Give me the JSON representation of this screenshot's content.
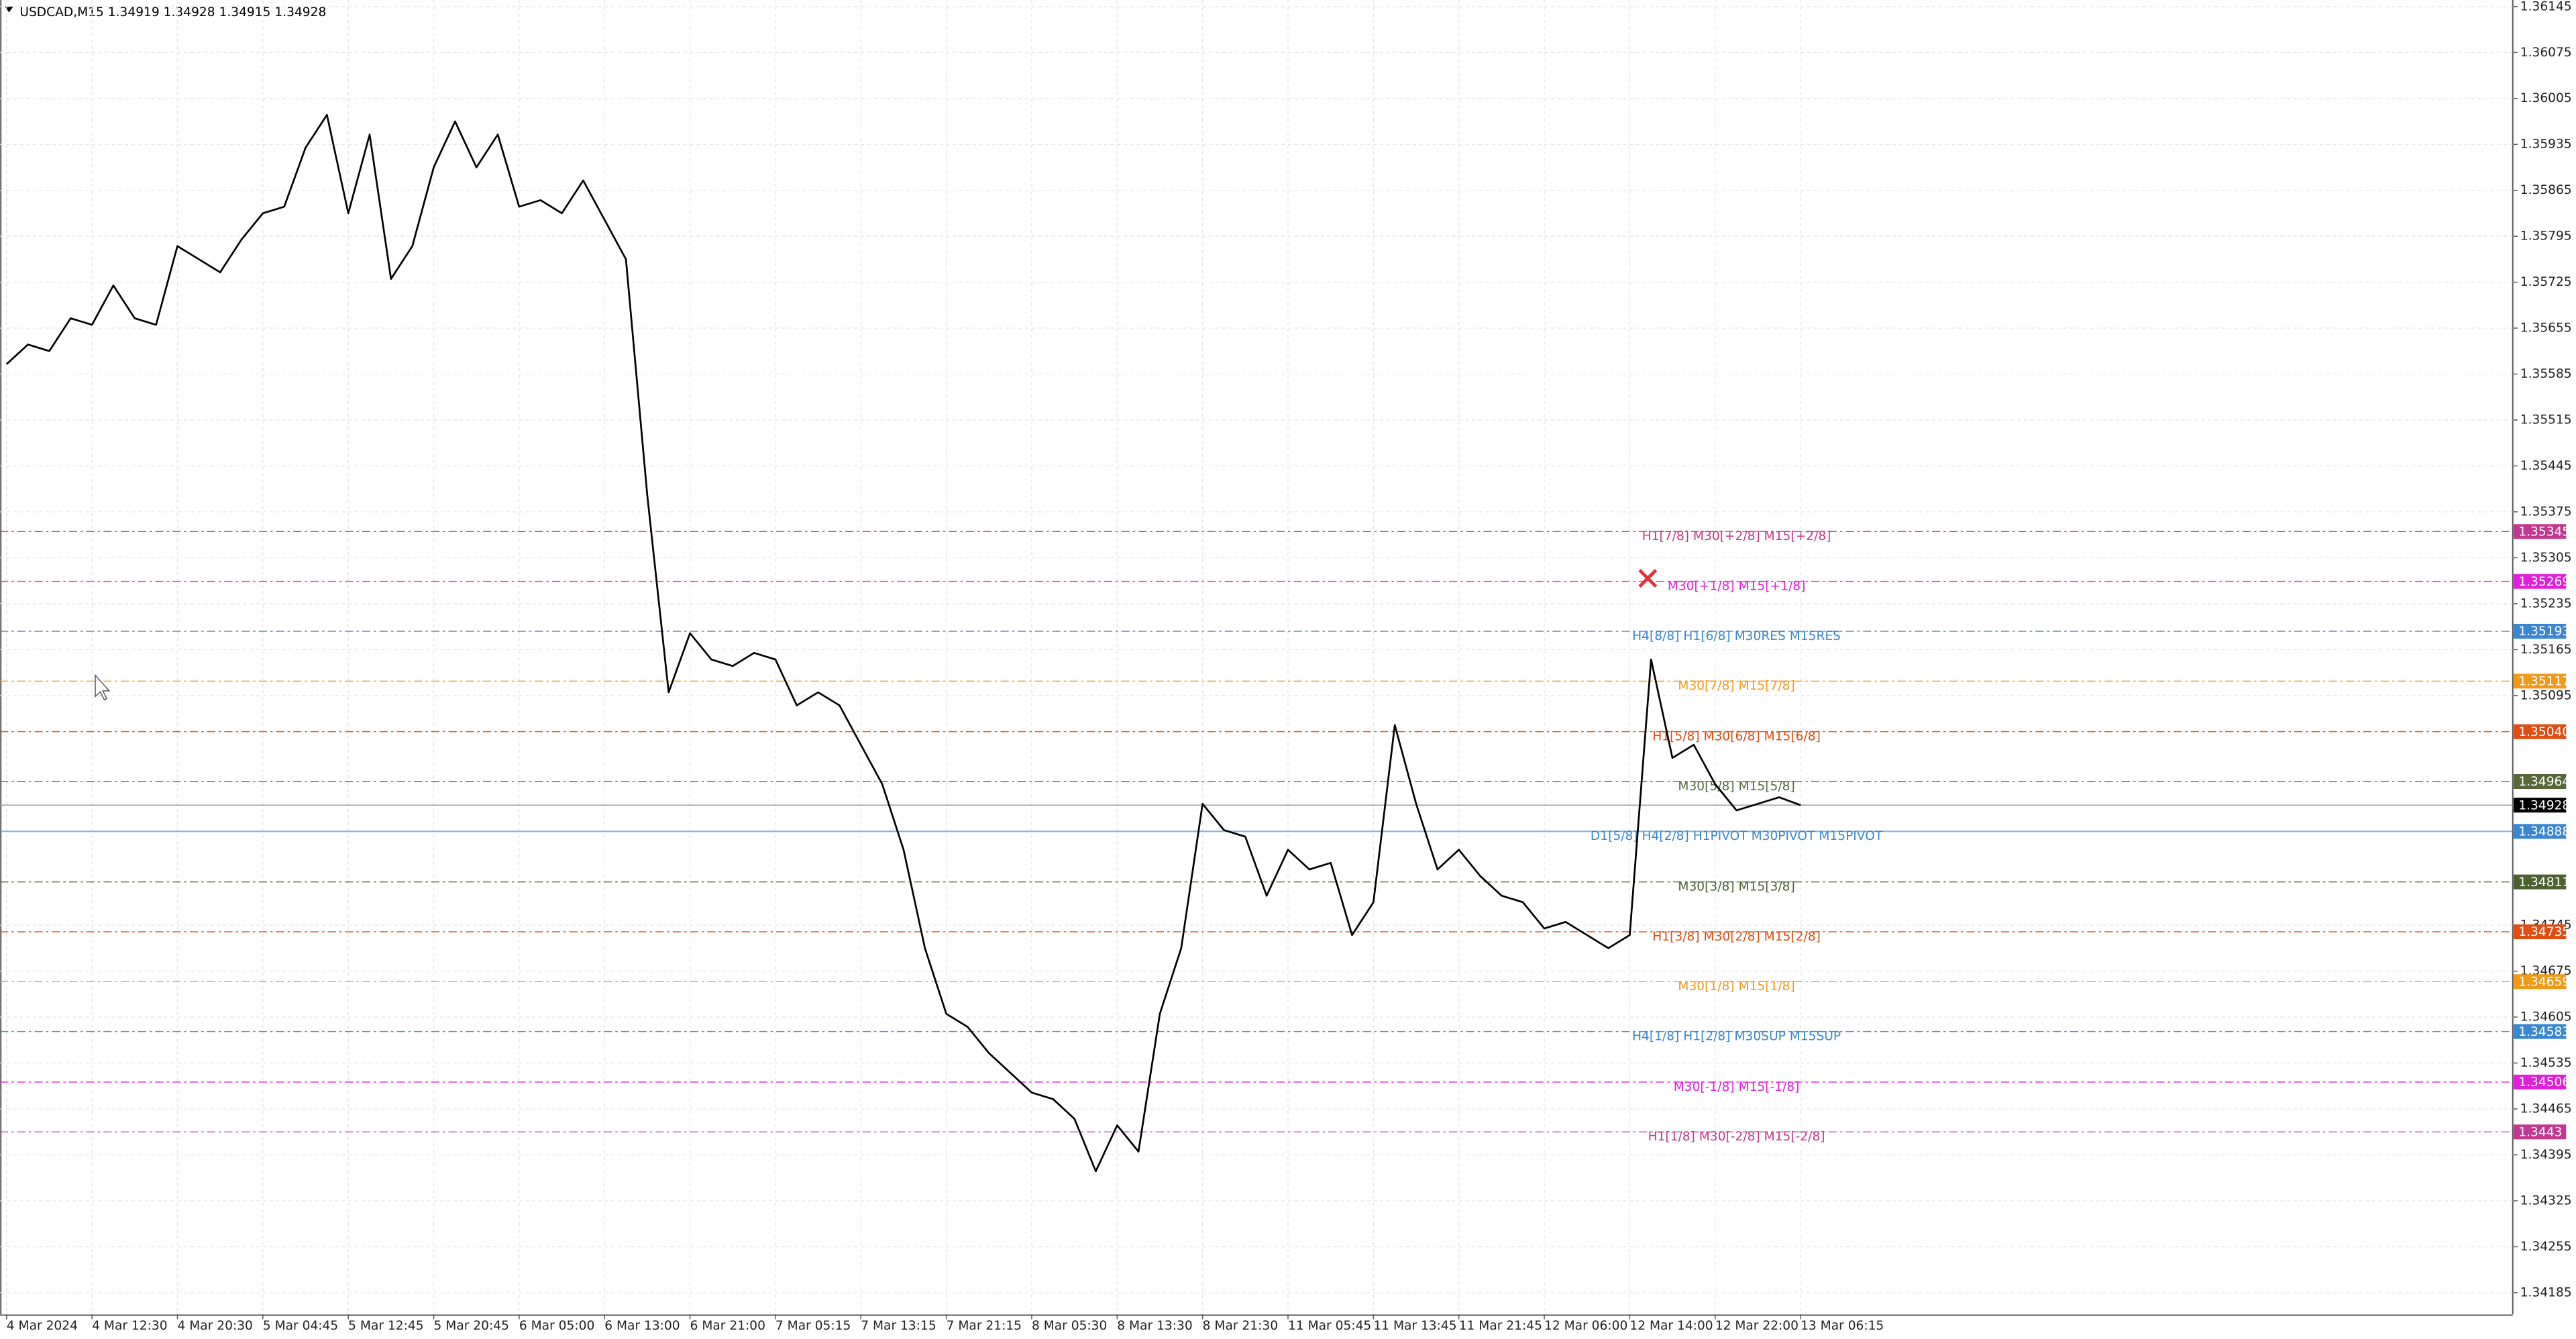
{
  "chart_data": {
    "type": "line",
    "title": "USDCAD,M15  1.34919 1.34928 1.34915 1.34928",
    "color": "#000000",
    "categories": [
      "4 Mar 2024",
      null,
      null,
      null,
      "4 Mar 12:30",
      null,
      null,
      null,
      "4 Mar 20:30",
      null,
      null,
      null,
      "5 Mar 04:45",
      null,
      null,
      null,
      "5 Mar 12:45",
      null,
      null,
      null,
      "5 Mar 20:45",
      null,
      null,
      null,
      "6 Mar 05:00",
      null,
      null,
      null,
      "6 Mar 13:00",
      null,
      null,
      null,
      "6 Mar 21:00",
      null,
      null,
      null,
      "7 Mar 05:15",
      null,
      null,
      null,
      "7 Mar 13:15",
      null,
      null,
      null,
      "7 Mar 21:15",
      null,
      null,
      null,
      "8 Mar 05:30",
      null,
      null,
      null,
      "8 Mar 13:30",
      null,
      null,
      null,
      "8 Mar 21:30",
      null,
      null,
      null,
      "11 Mar 05:45",
      null,
      null,
      null,
      "11 Mar 13:45",
      null,
      null,
      null,
      "11 Mar 21:45",
      null,
      null,
      null,
      "12 Mar 06:00",
      null,
      null,
      null,
      "12 Mar 14:00",
      null,
      null,
      null,
      "12 Mar 22:00",
      null,
      null,
      null,
      "13 Mar 06:15"
    ],
    "values": [
      1.356,
      1.3563,
      1.3562,
      1.3567,
      1.3566,
      1.3572,
      1.3567,
      1.3566,
      1.3578,
      1.3576,
      1.3574,
      1.3579,
      1.3583,
      1.3584,
      1.3593,
      1.3598,
      1.3583,
      1.3595,
      1.3573,
      1.3578,
      1.359,
      1.3597,
      1.359,
      1.3595,
      1.3584,
      1.3585,
      1.3583,
      1.3588,
      1.3582,
      1.3576,
      1.354,
      1.351,
      1.3519,
      1.3515,
      1.3514,
      1.3516,
      1.3515,
      1.3508,
      1.351,
      1.3508,
      1.3502,
      1.3496,
      1.3486,
      1.3471,
      1.3461,
      1.3459,
      1.3455,
      1.3452,
      1.3449,
      1.3448,
      1.3445,
      1.3437,
      1.3444,
      1.344,
      1.3461,
      1.3471,
      1.3493,
      1.3489,
      1.3488,
      1.3479,
      1.3486,
      1.3483,
      1.3484,
      1.3473,
      1.3478,
      1.3505,
      1.3493,
      1.3483,
      1.3486,
      1.3482,
      1.3479,
      1.3478,
      1.3474,
      1.3475,
      1.3473,
      1.3471,
      1.3473,
      1.3515,
      1.35,
      1.3502,
      1.3496,
      1.3492,
      1.3493,
      1.3494,
      1.34928
    ],
    "ylim": [
      1.34152,
      1.36155
    ],
    "yticks": [
      1.36145,
      1.36075,
      1.36005,
      1.35935,
      1.35865,
      1.35795,
      1.35725,
      1.35655,
      1.35585,
      1.35515,
      1.35445,
      1.35375,
      1.35305,
      1.35235,
      1.35165,
      1.35095,
      1.34745,
      1.34675,
      1.34605,
      1.34535,
      1.34465,
      1.34395,
      1.34325,
      1.34255,
      1.34185
    ],
    "grid": true,
    "last_price": 1.34928,
    "levels": [
      {
        "name": "H1[7/8] M30[+2/8] M15[+2/8]",
        "value": 1.35345,
        "color": "#c2378f"
      },
      {
        "name": "M30[+1/8] M15[+1/8]",
        "value": 1.35269,
        "color": "#e020d8"
      },
      {
        "name": "H4[8/8] H1[6/8] M30RES M15RES",
        "value": 1.35193,
        "color": "#3a87d0"
      },
      {
        "name": "M30[7/8] M15[7/8]",
        "value": 1.35117,
        "color": "#f09a1a"
      },
      {
        "name": "H1[5/8] M30[6/8] M15[6/8]",
        "value": 1.3504,
        "value_label": "1.35040",
        "color": "#e04d12"
      },
      {
        "name": "M30[5/8] M15[5/8]",
        "value": 1.34964,
        "color": "#56683a"
      },
      {
        "name": "D1[5/8] H4[2/8] H1PIVOT M30PIVOT M15PIVOT",
        "value": 1.34888,
        "color": "#3a87d0"
      },
      {
        "name": "M30[3/8] M15[3/8]",
        "value": 1.34811,
        "color": "#4b6130"
      },
      {
        "name": "H1[3/8] M30[2/8] M15[2/8]",
        "value": 1.34735,
        "color": "#e04d12"
      },
      {
        "name": "M30[1/8] M15[1/8]",
        "value": 1.34659,
        "color": "#f09a1a"
      },
      {
        "name": "H4[1/8] H1[2/8] M30SUP M15SUP",
        "value": 1.34583,
        "color": "#3a87d0"
      },
      {
        "name": "M30[-1/8] M15[-1/8]",
        "value": 1.34506,
        "color": "#e020d8"
      },
      {
        "name": "H1[1/8] M30[-2/8] M15[-2/8]",
        "value": 1.3443,
        "color": "#c2378f"
      }
    ]
  }
}
